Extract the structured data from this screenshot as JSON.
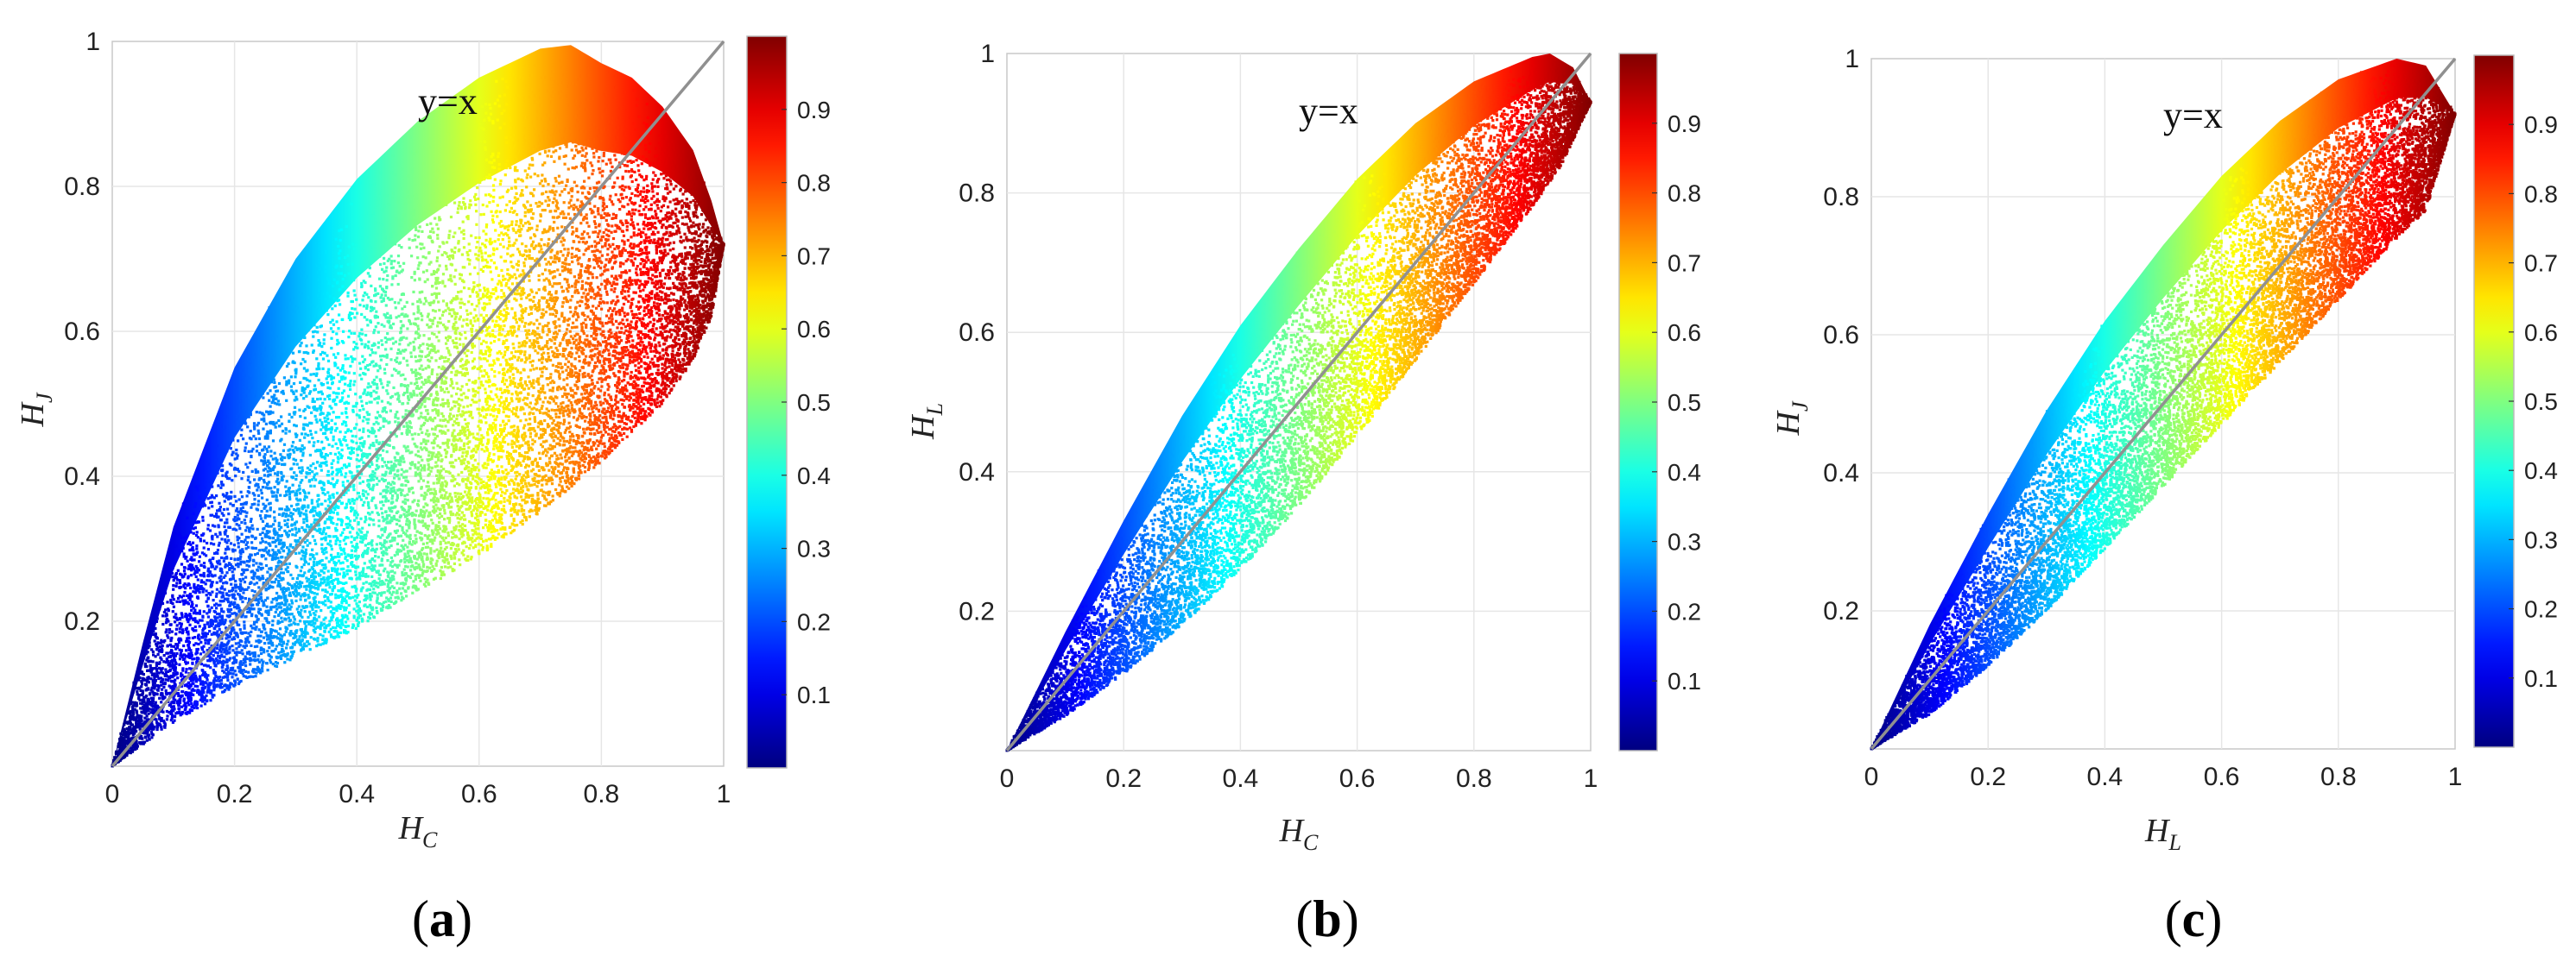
{
  "colors": {
    "line": "#909090",
    "grid": "#e6e6e6",
    "axis_text": "#222222",
    "colormap": "jet"
  },
  "chart_data": [
    {
      "type": "scatter",
      "panel_label": "a",
      "x_symbol": "H",
      "x_sub": "C",
      "y_symbol": "H",
      "y_sub": "J",
      "annotation": "y=x",
      "reference_line": "y=x",
      "xlim": [
        0,
        1
      ],
      "ylim": [
        0,
        1
      ],
      "x_ticks": [
        "0",
        "0.2",
        "0.4",
        "0.6",
        "0.8",
        "1"
      ],
      "y_ticks": [
        "0.2",
        "0.4",
        "0.6",
        "0.8",
        "1"
      ],
      "grid": true,
      "color_variable": "H_C",
      "colorbar": {
        "range": [
          0,
          1
        ],
        "ticks": [
          "0.1",
          "0.2",
          "0.3",
          "0.4",
          "0.5",
          "0.6",
          "0.7",
          "0.8",
          "0.9"
        ]
      },
      "upper_boundary": [
        [
          0,
          0
        ],
        [
          0.05,
          0.17
        ],
        [
          0.1,
          0.33
        ],
        [
          0.2,
          0.55
        ],
        [
          0.3,
          0.7
        ],
        [
          0.4,
          0.81
        ],
        [
          0.5,
          0.89
        ],
        [
          0.6,
          0.95
        ],
        [
          0.7,
          0.99
        ],
        [
          0.75,
          0.995
        ],
        [
          0.8,
          0.97
        ],
        [
          0.85,
          0.95
        ],
        [
          0.9,
          0.91
        ],
        [
          0.95,
          0.85
        ],
        [
          0.98,
          0.78
        ],
        [
          1.0,
          0.72
        ]
      ],
      "lower_boundary": [
        [
          0,
          0
        ],
        [
          0.1,
          0.06
        ],
        [
          0.2,
          0.11
        ],
        [
          0.3,
          0.15
        ],
        [
          0.4,
          0.19
        ],
        [
          0.5,
          0.24
        ],
        [
          0.6,
          0.29
        ],
        [
          0.7,
          0.35
        ],
        [
          0.8,
          0.42
        ],
        [
          0.9,
          0.5
        ],
        [
          0.95,
          0.56
        ],
        [
          0.98,
          0.62
        ],
        [
          1.0,
          0.72
        ]
      ],
      "points": 14000
    },
    {
      "type": "scatter",
      "panel_label": "b",
      "x_symbol": "H",
      "x_sub": "C",
      "y_symbol": "H",
      "y_sub": "L",
      "annotation": "y=x",
      "reference_line": "y=x",
      "xlim": [
        0,
        1
      ],
      "ylim": [
        0,
        1
      ],
      "x_ticks": [
        "0",
        "0.2",
        "0.4",
        "0.6",
        "0.8",
        "1"
      ],
      "y_ticks": [
        "0.2",
        "0.4",
        "0.6",
        "0.8",
        "1"
      ],
      "grid": true,
      "color_variable": "H_C",
      "colorbar": {
        "range": [
          0,
          1
        ],
        "ticks": [
          "0.1",
          "0.2",
          "0.3",
          "0.4",
          "0.5",
          "0.6",
          "0.7",
          "0.8",
          "0.9"
        ]
      },
      "upper_boundary": [
        [
          0,
          0
        ],
        [
          0.1,
          0.17
        ],
        [
          0.2,
          0.33
        ],
        [
          0.3,
          0.48
        ],
        [
          0.4,
          0.61
        ],
        [
          0.5,
          0.72
        ],
        [
          0.6,
          0.82
        ],
        [
          0.7,
          0.9
        ],
        [
          0.8,
          0.96
        ],
        [
          0.9,
          0.995
        ],
        [
          0.93,
          1.0
        ],
        [
          0.97,
          0.98
        ],
        [
          1.0,
          0.93
        ]
      ],
      "lower_boundary": [
        [
          0,
          0
        ],
        [
          0.1,
          0.05
        ],
        [
          0.2,
          0.11
        ],
        [
          0.3,
          0.18
        ],
        [
          0.4,
          0.26
        ],
        [
          0.5,
          0.35
        ],
        [
          0.6,
          0.45
        ],
        [
          0.7,
          0.56
        ],
        [
          0.8,
          0.67
        ],
        [
          0.9,
          0.78
        ],
        [
          0.95,
          0.84
        ],
        [
          1.0,
          0.93
        ]
      ],
      "points": 12000
    },
    {
      "type": "scatter",
      "panel_label": "c",
      "x_symbol": "H",
      "x_sub": "L",
      "y_symbol": "H",
      "y_sub": "J",
      "annotation": "y=x",
      "reference_line": "y=x",
      "xlim": [
        0,
        1
      ],
      "ylim": [
        0,
        1
      ],
      "x_ticks": [
        "0",
        "0.2",
        "0.4",
        "0.6",
        "0.8",
        "1"
      ],
      "y_ticks": [
        "0.2",
        "0.4",
        "0.6",
        "0.8",
        "1"
      ],
      "grid": true,
      "color_variable": "H_L",
      "colorbar": {
        "range": [
          0,
          1
        ],
        "ticks": [
          "0.1",
          "0.2",
          "0.3",
          "0.4",
          "0.5",
          "0.6",
          "0.7",
          "0.8",
          "0.9"
        ]
      },
      "upper_boundary": [
        [
          0,
          0
        ],
        [
          0.1,
          0.18
        ],
        [
          0.2,
          0.34
        ],
        [
          0.3,
          0.49
        ],
        [
          0.4,
          0.62
        ],
        [
          0.5,
          0.73
        ],
        [
          0.6,
          0.83
        ],
        [
          0.7,
          0.91
        ],
        [
          0.8,
          0.97
        ],
        [
          0.9,
          1.0
        ],
        [
          0.95,
          0.99
        ],
        [
          1.0,
          0.92
        ]
      ],
      "lower_boundary": [
        [
          0,
          0
        ],
        [
          0.1,
          0.05
        ],
        [
          0.2,
          0.12
        ],
        [
          0.3,
          0.2
        ],
        [
          0.4,
          0.29
        ],
        [
          0.5,
          0.38
        ],
        [
          0.6,
          0.47
        ],
        [
          0.7,
          0.56
        ],
        [
          0.8,
          0.65
        ],
        [
          0.9,
          0.74
        ],
        [
          0.95,
          0.78
        ],
        [
          1.0,
          0.92
        ]
      ],
      "points": 14000
    }
  ]
}
